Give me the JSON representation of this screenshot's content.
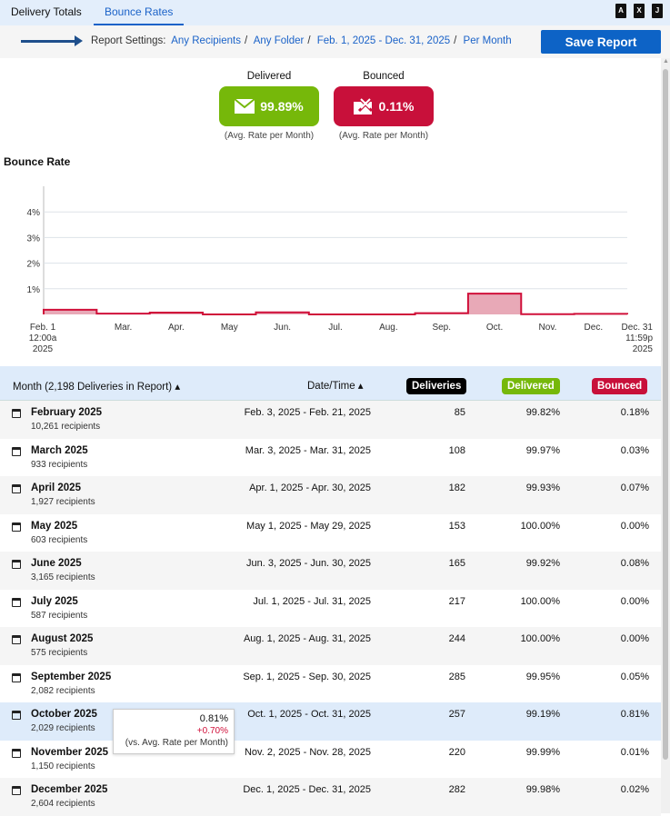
{
  "tabs": [
    {
      "label": "Delivery Totals",
      "active": false
    },
    {
      "label": "Bounce Rates",
      "active": true
    }
  ],
  "file_icons": [
    {
      "name": "pdf-icon",
      "glyph": "A"
    },
    {
      "name": "excel-icon",
      "glyph": "X"
    },
    {
      "name": "json-icon",
      "glyph": "J"
    }
  ],
  "settings": {
    "label": "Report Settings:",
    "recipients": "Any Recipients",
    "folder": "Any Folder",
    "range": "Feb. 1, 2025 - Dec. 31, 2025",
    "period": "Per Month",
    "sep": "/",
    "save": "Save Report"
  },
  "kpis": {
    "delivered": {
      "label": "Delivered",
      "value": "99.89%",
      "sub": "(Avg. Rate per Month)",
      "color": "#76b80a"
    },
    "bounced": {
      "label": "Bounced",
      "value": "0.11%",
      "sub": "(Avg. Rate per Month)",
      "color": "#c8103a"
    }
  },
  "chart_title": "Bounce Rate",
  "chart_data": {
    "type": "area",
    "title": "Bounce Rate",
    "categories": [
      "Feb.",
      "Mar.",
      "Apr.",
      "May",
      "Jun.",
      "Jul.",
      "Aug.",
      "Sep.",
      "Oct.",
      "Nov.",
      "Dec."
    ],
    "values": [
      0.18,
      0.03,
      0.07,
      0,
      0.08,
      0,
      0,
      0.05,
      0.81,
      0.01,
      0.02
    ],
    "ylim": [
      0,
      5
    ],
    "yticks": [
      "1%",
      "2%",
      "3%",
      "4%"
    ],
    "start_label": [
      "Feb. 1",
      "12:00a",
      "2025"
    ],
    "end_label": [
      "Dec. 31",
      "11:59p",
      "2025"
    ],
    "grid": true
  },
  "table": {
    "headers": {
      "month": "Month (2,198 Deliveries in Report) ▴",
      "date": "Date/Time ▴",
      "deliveries": "Deliveries",
      "delivered": "Delivered",
      "bounced": "Bounced"
    },
    "rows": [
      {
        "month": "February 2025",
        "recipients": "10,261 recipients",
        "date": "Feb. 3, 2025 - Feb. 21, 2025",
        "deliveries": "85",
        "delivered": "99.82%",
        "bounced": "0.18%"
      },
      {
        "month": "March 2025",
        "recipients": "933 recipients",
        "date": "Mar. 3, 2025 - Mar. 31, 2025",
        "deliveries": "108",
        "delivered": "99.97%",
        "bounced": "0.03%"
      },
      {
        "month": "April 2025",
        "recipients": "1,927 recipients",
        "date": "Apr. 1, 2025 - Apr. 30, 2025",
        "deliveries": "182",
        "delivered": "99.93%",
        "bounced": "0.07%"
      },
      {
        "month": "May 2025",
        "recipients": "603 recipients",
        "date": "May 1, 2025 - May 29, 2025",
        "deliveries": "153",
        "delivered": "100.00%",
        "bounced": "0.00%"
      },
      {
        "month": "June 2025",
        "recipients": "3,165 recipients",
        "date": "Jun. 3, 2025 - Jun. 30, 2025",
        "deliveries": "165",
        "delivered": "99.92%",
        "bounced": "0.08%"
      },
      {
        "month": "July 2025",
        "recipients": "587 recipients",
        "date": "Jul. 1, 2025 - Jul. 31, 2025",
        "deliveries": "217",
        "delivered": "100.00%",
        "bounced": "0.00%"
      },
      {
        "month": "August 2025",
        "recipients": "575 recipients",
        "date": "Aug. 1, 2025 - Aug. 31, 2025",
        "deliveries": "244",
        "delivered": "100.00%",
        "bounced": "0.00%"
      },
      {
        "month": "September 2025",
        "recipients": "2,082 recipients",
        "date": "Sep. 1, 2025 - Sep. 30, 2025",
        "deliveries": "285",
        "delivered": "99.95%",
        "bounced": "0.05%"
      },
      {
        "month": "October 2025",
        "recipients": "2,029 recipients",
        "date": "Oct. 1, 2025 - Oct. 31, 2025",
        "deliveries": "257",
        "delivered": "99.19%",
        "bounced": "0.81%"
      },
      {
        "month": "November 2025",
        "recipients": "1,150 recipients",
        "date": "Nov. 2, 2025 - Nov. 28, 2025",
        "deliveries": "220",
        "delivered": "99.99%",
        "bounced": "0.01%"
      },
      {
        "month": "December 2025",
        "recipients": "2,604 recipients",
        "date": "Dec. 1, 2025 - Dec. 31, 2025",
        "deliveries": "282",
        "delivered": "99.98%",
        "bounced": "0.02%"
      }
    ]
  },
  "tooltip": {
    "value": "0.81%",
    "delta": "+0.70%",
    "note": "(vs. Avg. Rate per Month)"
  }
}
